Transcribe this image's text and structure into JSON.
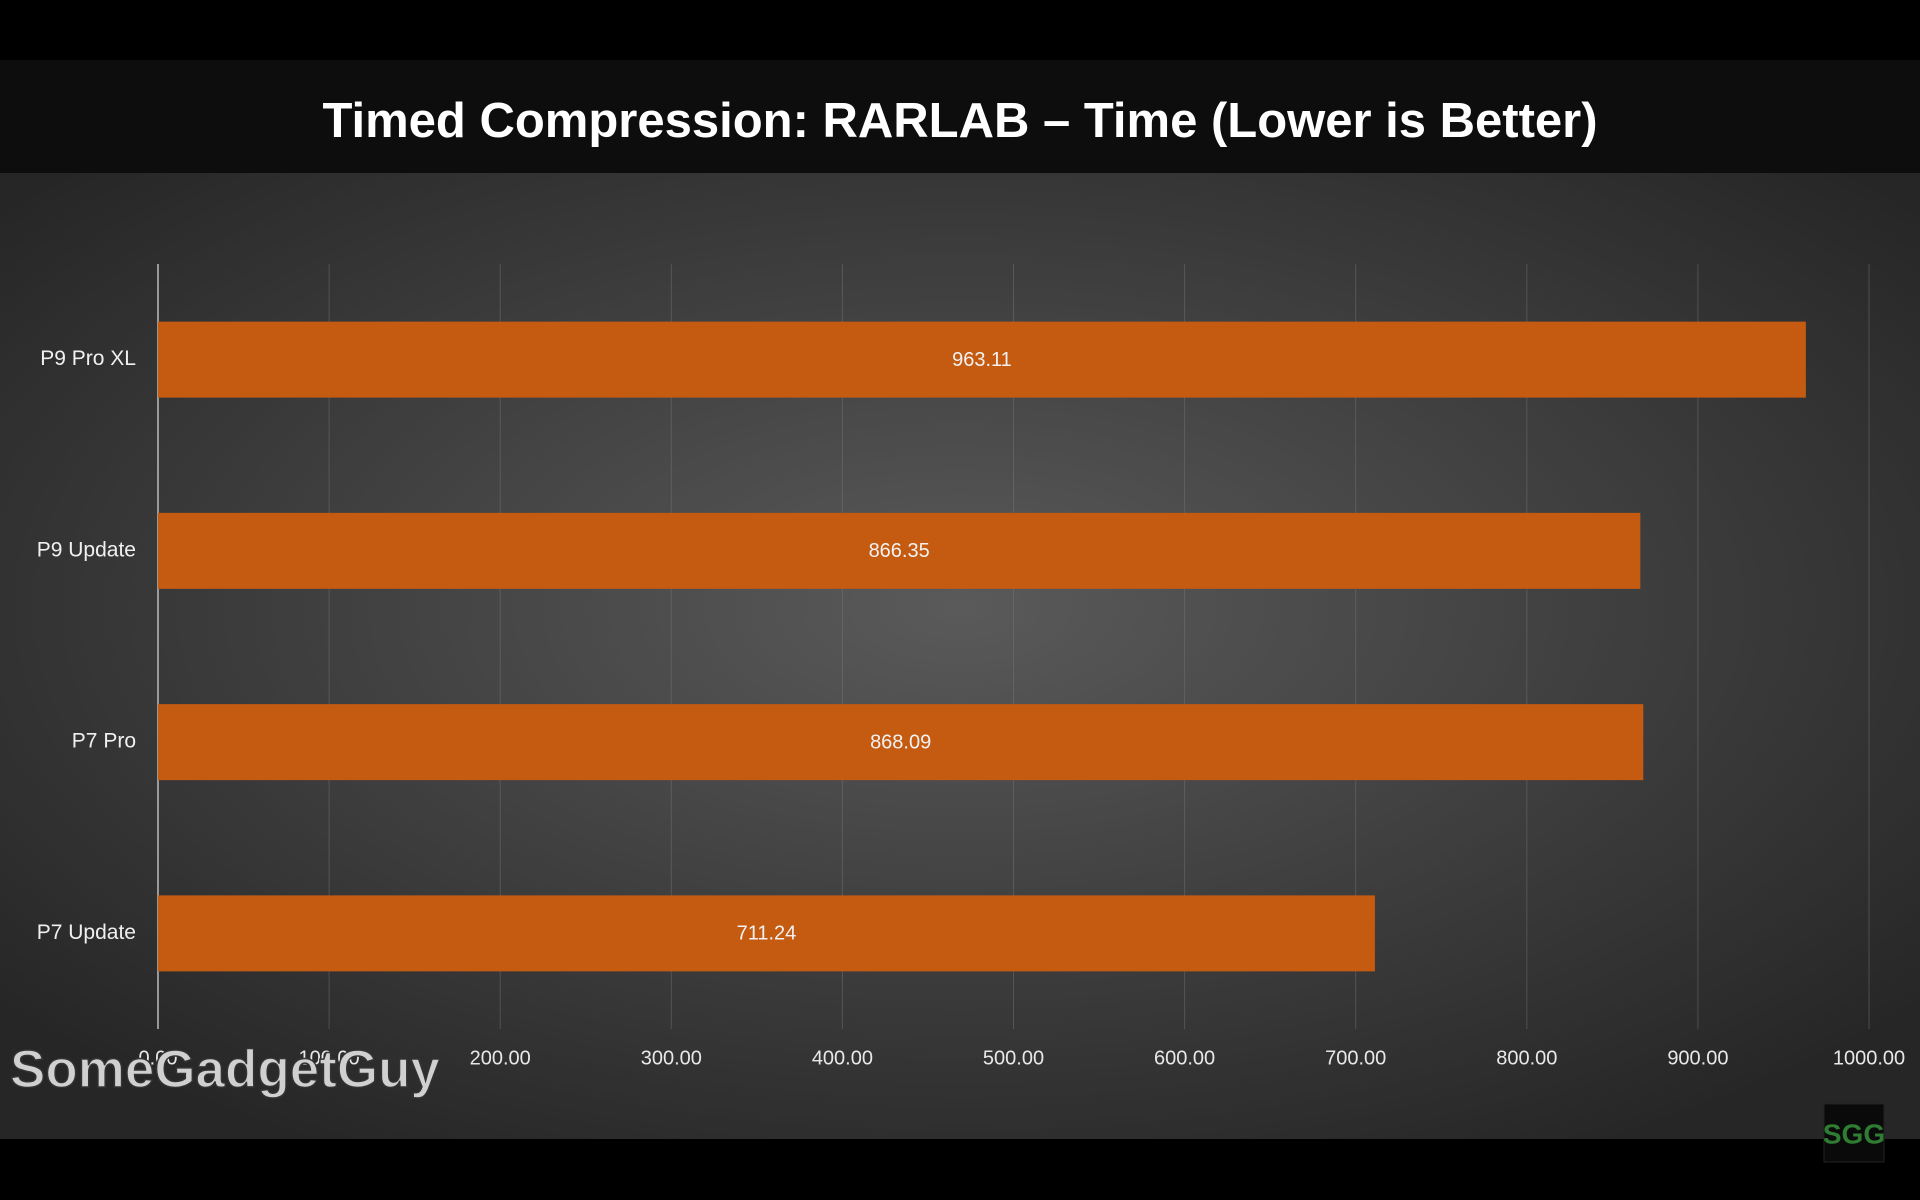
{
  "chart_data": {
    "type": "bar",
    "orientation": "horizontal",
    "title": "Timed Compression: RARLAB – Time (Lower is Better)",
    "categories": [
      "P9 Pro XL",
      "P9 Update",
      "P7 Pro",
      "P7 Update"
    ],
    "values": [
      963.11,
      866.35,
      868.09,
      711.24
    ],
    "color": "#c55a11",
    "xlim": [
      0,
      1000
    ],
    "xticks": [
      {
        "value": 0,
        "label": "0.00"
      },
      {
        "value": 100,
        "label": "100.00"
      },
      {
        "value": 200,
        "label": "200.00"
      },
      {
        "value": 300,
        "label": "300.00"
      },
      {
        "value": 400,
        "label": "400.00"
      },
      {
        "value": 500,
        "label": "500.00"
      },
      {
        "value": 600,
        "label": "600.00"
      },
      {
        "value": 700,
        "label": "700.00"
      },
      {
        "value": 800,
        "label": "800.00"
      },
      {
        "value": 900,
        "label": "900.00"
      },
      {
        "value": 1000,
        "label": "1000.00"
      }
    ],
    "grid": true,
    "watermark": "SomeGadgetGuy",
    "logo": "SGG"
  }
}
